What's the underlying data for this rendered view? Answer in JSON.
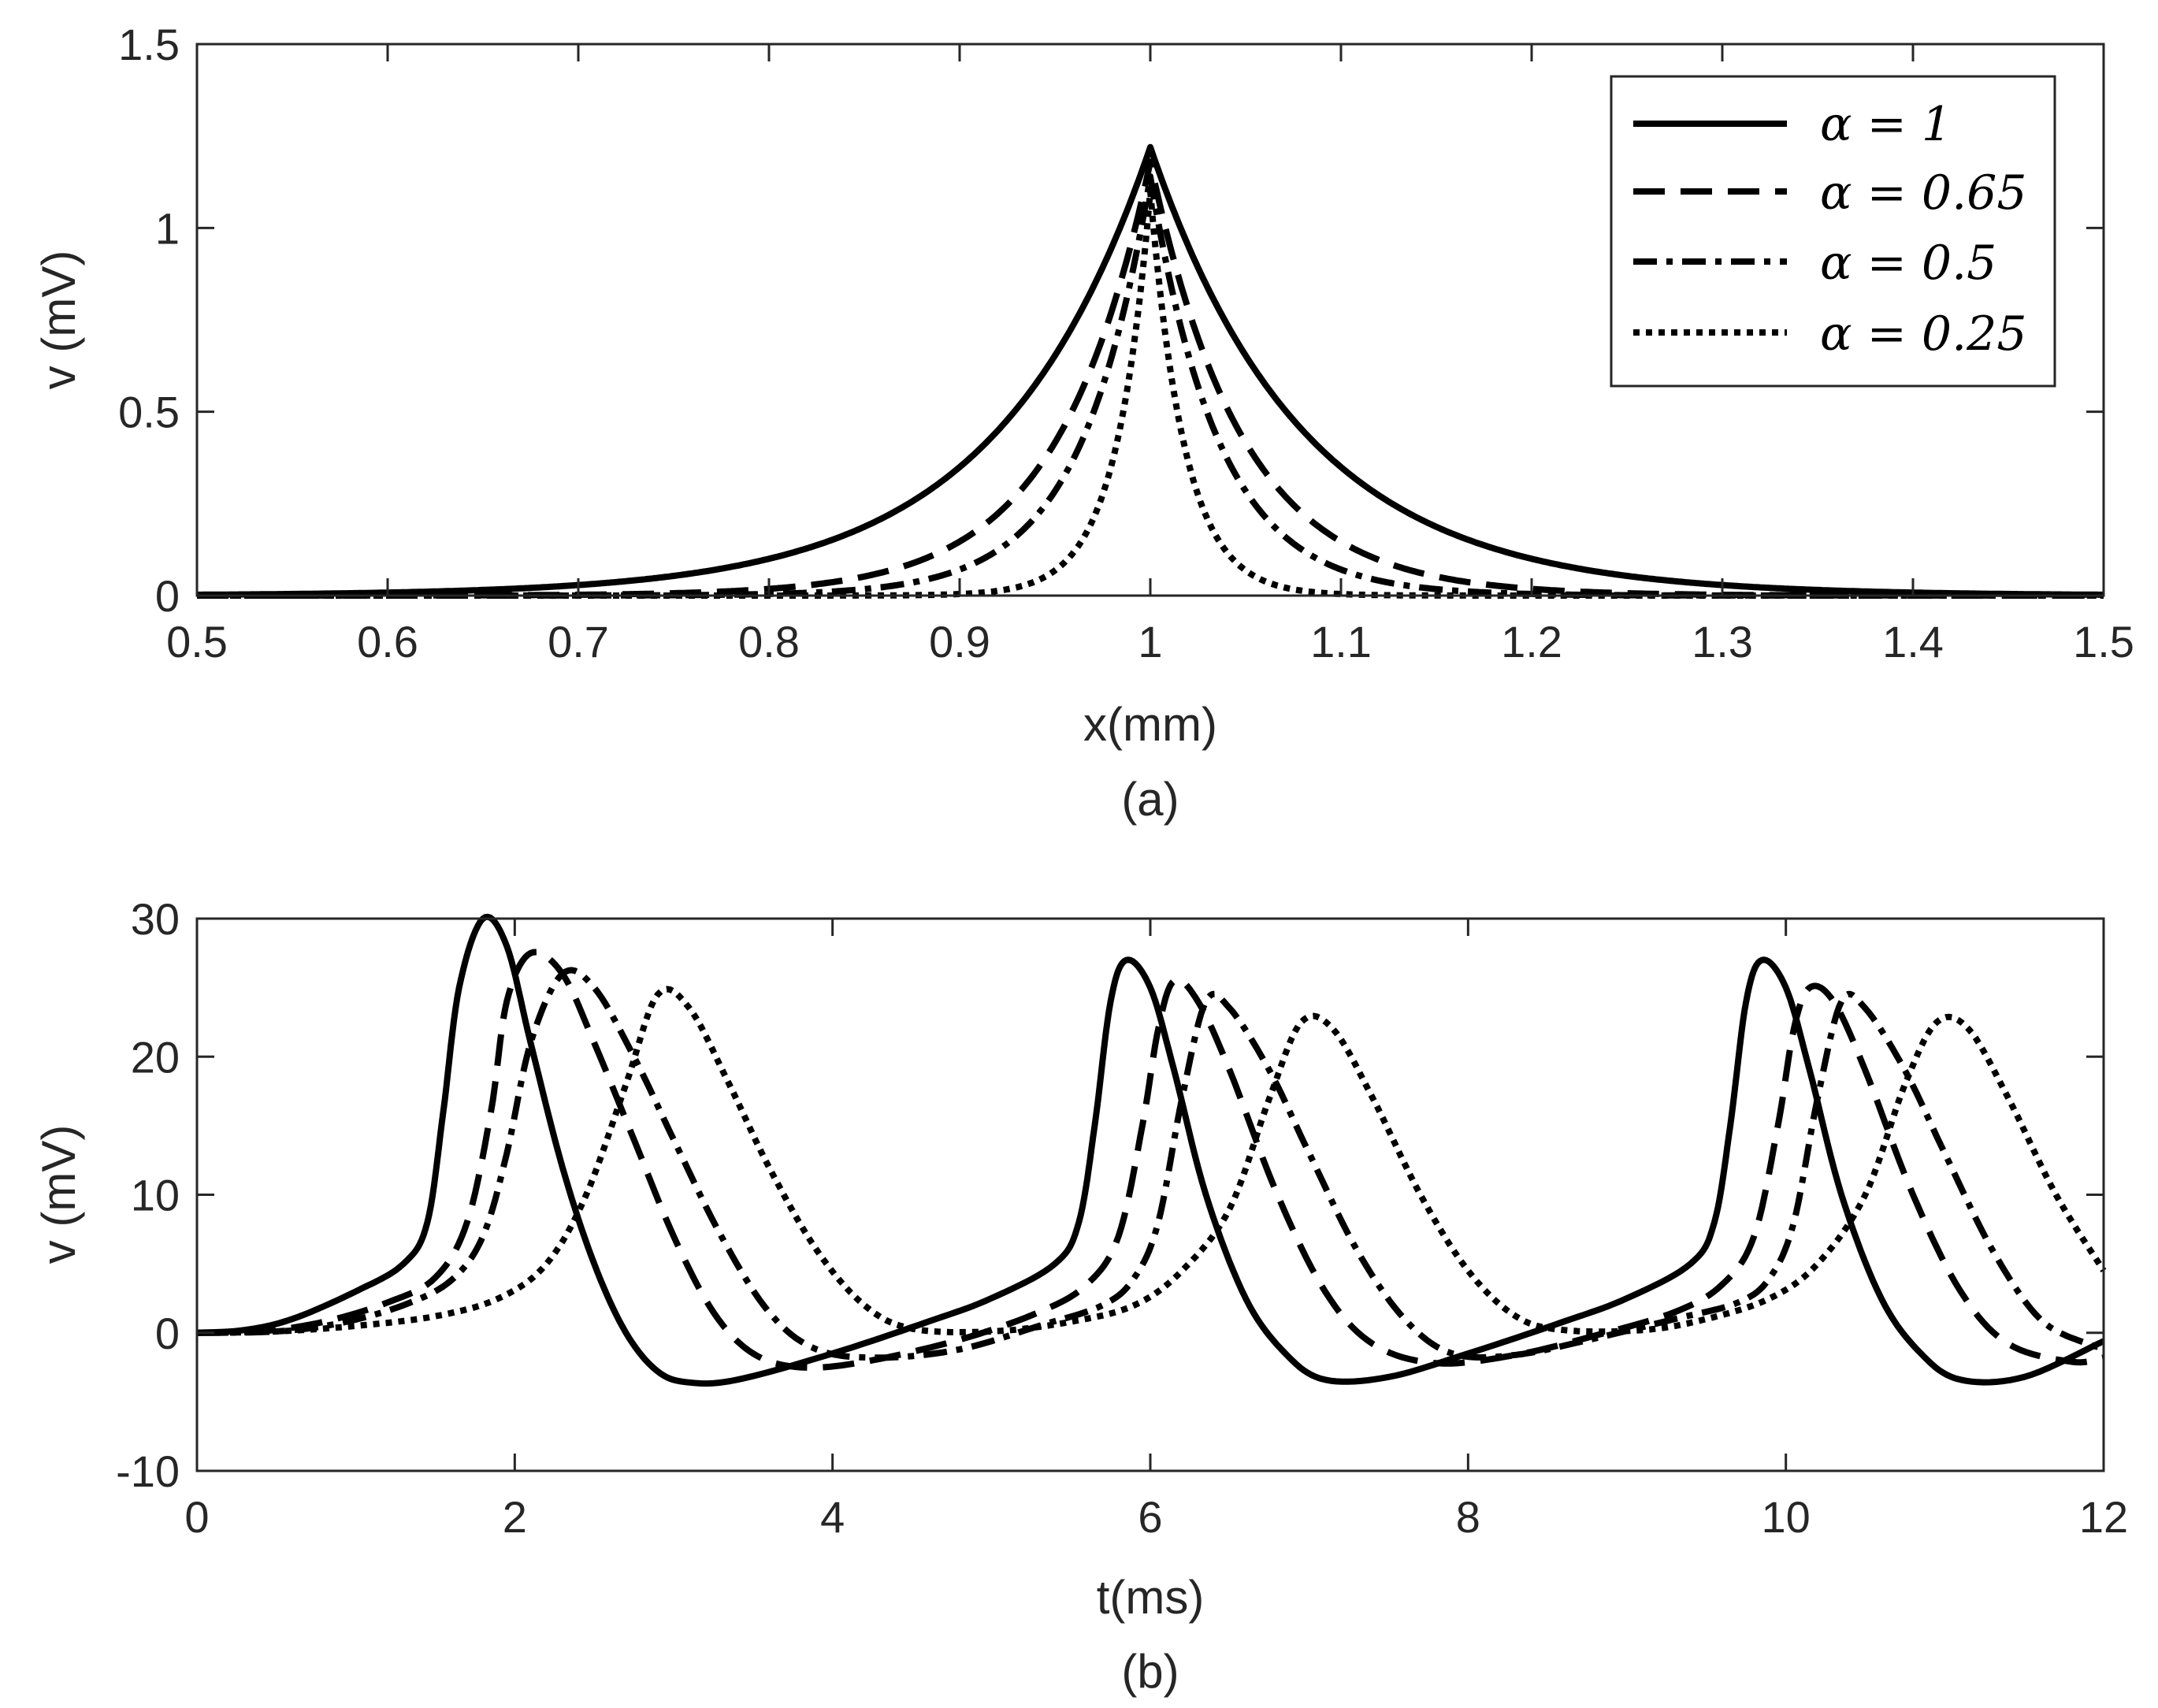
{
  "chart_data": [
    {
      "type": "line",
      "panel": "(a)",
      "xlabel": "x(mm)",
      "ylabel": "v (mV)",
      "caption": "(a)",
      "xlim": [
        0.5,
        1.5
      ],
      "ylim": [
        0,
        1.5
      ],
      "xticks": [
        0.5,
        0.6,
        0.7,
        0.8,
        0.9,
        1,
        1.1,
        1.2,
        1.3,
        1.4,
        1.5
      ],
      "xtick_labels": [
        "0.5",
        "0.6",
        "0.7",
        "0.8",
        "0.9",
        "1",
        "1.1",
        "1.2",
        "1.3",
        "1.4",
        "1.5"
      ],
      "yticks": [
        0,
        0.5,
        1,
        1.5
      ],
      "ytick_labels": [
        "0",
        "0.5",
        "1",
        "1.5"
      ],
      "legend_position": "top-right",
      "series": [
        {
          "name": "α = 1",
          "dash": "solid",
          "peak": 1.22,
          "center": 1.0,
          "decay": 0.08
        },
        {
          "name": "α = 0.65",
          "dash": "dashed",
          "peak": 1.18,
          "center": 1.0,
          "decay": 0.048
        },
        {
          "name": "α = 0.5",
          "dash": "dashdot",
          "peak": 1.14,
          "center": 1.0,
          "decay": 0.036
        },
        {
          "name": "α = 0.25",
          "dash": "dotted",
          "peak": 1.1,
          "center": 1.0,
          "decay": 0.018
        }
      ]
    },
    {
      "type": "line",
      "panel": "(b)",
      "xlabel": "t(ms)",
      "ylabel": "v (mV)",
      "caption": "(b)",
      "xlim": [
        0,
        12
      ],
      "ylim": [
        -10,
        30
      ],
      "xticks": [
        0,
        2,
        4,
        6,
        8,
        10,
        12
      ],
      "xtick_labels": [
        "0",
        "2",
        "4",
        "6",
        "8",
        "10",
        "12"
      ],
      "yticks": [
        -10,
        0,
        10,
        20,
        30
      ],
      "ytick_labels": [
        "-10",
        "0",
        "10",
        "20",
        "30"
      ],
      "series": [
        {
          "name": "α = 1",
          "dash": "solid",
          "points": [
            [
              0,
              0
            ],
            [
              0.3,
              0.2
            ],
            [
              0.6,
              1
            ],
            [
              1.0,
              3
            ],
            [
              1.3,
              5
            ],
            [
              1.45,
              8
            ],
            [
              1.55,
              16
            ],
            [
              1.65,
              25
            ],
            [
              1.8,
              30
            ],
            [
              1.95,
              28
            ],
            [
              2.1,
              21
            ],
            [
              2.3,
              12
            ],
            [
              2.5,
              5
            ],
            [
              2.7,
              0
            ],
            [
              2.9,
              -2.8
            ],
            [
              3.1,
              -3.6
            ],
            [
              3.4,
              -3.4
            ],
            [
              4.0,
              -1.5
            ],
            [
              4.6,
              0.8
            ],
            [
              5.0,
              2.5
            ],
            [
              5.4,
              5
            ],
            [
              5.55,
              8
            ],
            [
              5.65,
              15
            ],
            [
              5.75,
              24
            ],
            [
              5.85,
              27
            ],
            [
              6.0,
              25
            ],
            [
              6.15,
              19
            ],
            [
              6.35,
              10
            ],
            [
              6.6,
              2.5
            ],
            [
              6.85,
              -1.5
            ],
            [
              7.1,
              -3.4
            ],
            [
              7.5,
              -3.2
            ],
            [
              8.0,
              -1.5
            ],
            [
              8.6,
              0.8
            ],
            [
              9.0,
              2.5
            ],
            [
              9.4,
              5
            ],
            [
              9.55,
              8
            ],
            [
              9.65,
              15
            ],
            [
              9.75,
              24
            ],
            [
              9.85,
              27
            ],
            [
              10.0,
              25
            ],
            [
              10.15,
              19
            ],
            [
              10.35,
              10
            ],
            [
              10.6,
              2.5
            ],
            [
              10.85,
              -1.5
            ],
            [
              11.1,
              -3.4
            ],
            [
              11.5,
              -3.2
            ],
            [
              12.0,
              -0.6
            ]
          ]
        },
        {
          "name": "α = 0.65",
          "dash": "dashed",
          "points": [
            [
              0,
              0
            ],
            [
              0.4,
              0.1
            ],
            [
              0.8,
              0.8
            ],
            [
              1.2,
              2.2
            ],
            [
              1.5,
              4
            ],
            [
              1.7,
              8
            ],
            [
              1.85,
              16
            ],
            [
              1.95,
              24
            ],
            [
              2.1,
              27.5
            ],
            [
              2.3,
              26
            ],
            [
              2.5,
              21
            ],
            [
              2.75,
              14
            ],
            [
              3.0,
              7
            ],
            [
              3.25,
              1.5
            ],
            [
              3.5,
              -1.5
            ],
            [
              3.8,
              -2.5
            ],
            [
              4.2,
              -2.1
            ],
            [
              4.8,
              -0.5
            ],
            [
              5.3,
              1.5
            ],
            [
              5.6,
              3.5
            ],
            [
              5.8,
              7
            ],
            [
              5.95,
              15
            ],
            [
              6.05,
              22
            ],
            [
              6.15,
              25.5
            ],
            [
              6.3,
              24
            ],
            [
              6.5,
              19
            ],
            [
              6.8,
              10
            ],
            [
              7.1,
              3
            ],
            [
              7.4,
              -0.8
            ],
            [
              7.8,
              -2.2
            ],
            [
              8.3,
              -1.6
            ],
            [
              8.8,
              -0.2
            ],
            [
              9.3,
              1.5
            ],
            [
              9.6,
              3.5
            ],
            [
              9.8,
              7
            ],
            [
              9.95,
              15
            ],
            [
              10.05,
              22
            ],
            [
              10.15,
              25
            ],
            [
              10.3,
              24
            ],
            [
              10.5,
              19
            ],
            [
              10.8,
              10
            ],
            [
              11.1,
              3
            ],
            [
              11.4,
              -0.8
            ],
            [
              11.8,
              -2.1
            ],
            [
              12.0,
              -1.8
            ]
          ]
        },
        {
          "name": "α = 0.5",
          "dash": "dashdot",
          "points": [
            [
              0,
              0
            ],
            [
              0.5,
              0.1
            ],
            [
              0.9,
              0.7
            ],
            [
              1.3,
              2
            ],
            [
              1.6,
              3.8
            ],
            [
              1.8,
              7
            ],
            [
              1.95,
              13
            ],
            [
              2.1,
              21
            ],
            [
              2.3,
              26
            ],
            [
              2.5,
              25
            ],
            [
              2.75,
              20
            ],
            [
              3.0,
              14
            ],
            [
              3.3,
              7
            ],
            [
              3.6,
              1.5
            ],
            [
              3.9,
              -1.2
            ],
            [
              4.3,
              -1.8
            ],
            [
              4.8,
              -1.2
            ],
            [
              5.3,
              0.5
            ],
            [
              5.7,
              2
            ],
            [
              5.9,
              4
            ],
            [
              6.05,
              8
            ],
            [
              6.2,
              17
            ],
            [
              6.35,
              24
            ],
            [
              6.5,
              23.5
            ],
            [
              6.75,
              19
            ],
            [
              7.0,
              13
            ],
            [
              7.3,
              6
            ],
            [
              7.6,
              1
            ],
            [
              7.9,
              -1.5
            ],
            [
              8.3,
              -1.6
            ],
            [
              8.8,
              -0.4
            ],
            [
              9.3,
              1
            ],
            [
              9.7,
              2.2
            ],
            [
              9.9,
              4
            ],
            [
              10.05,
              8
            ],
            [
              10.2,
              17
            ],
            [
              10.35,
              24
            ],
            [
              10.5,
              23.5
            ],
            [
              10.75,
              19
            ],
            [
              11.0,
              13
            ],
            [
              11.3,
              6
            ],
            [
              11.6,
              1
            ],
            [
              11.9,
              -0.8
            ],
            [
              12.0,
              -1
            ]
          ]
        },
        {
          "name": "α = 0.25",
          "dash": "dotted",
          "points": [
            [
              0,
              0
            ],
            [
              0.5,
              0.1
            ],
            [
              1.0,
              0.5
            ],
            [
              1.5,
              1.2
            ],
            [
              1.9,
              2.5
            ],
            [
              2.2,
              5
            ],
            [
              2.45,
              10
            ],
            [
              2.7,
              18
            ],
            [
              2.9,
              24.5
            ],
            [
              3.1,
              23.5
            ],
            [
              3.35,
              18
            ],
            [
              3.6,
              12
            ],
            [
              3.9,
              6
            ],
            [
              4.2,
              2
            ],
            [
              4.5,
              0.3
            ],
            [
              5.0,
              0.1
            ],
            [
              5.5,
              0.8
            ],
            [
              5.9,
              2
            ],
            [
              6.2,
              4.5
            ],
            [
              6.5,
              9
            ],
            [
              6.75,
              17
            ],
            [
              6.95,
              22.5
            ],
            [
              7.15,
              22
            ],
            [
              7.4,
              17
            ],
            [
              7.7,
              10
            ],
            [
              8.0,
              4.5
            ],
            [
              8.3,
              1.2
            ],
            [
              8.6,
              0.2
            ],
            [
              9.1,
              0.2
            ],
            [
              9.5,
              1
            ],
            [
              9.9,
              2.5
            ],
            [
              10.2,
              5
            ],
            [
              10.5,
              10
            ],
            [
              10.75,
              18
            ],
            [
              10.95,
              22.5
            ],
            [
              11.15,
              22
            ],
            [
              11.4,
              17
            ],
            [
              11.7,
              10
            ],
            [
              12.0,
              4.5
            ]
          ]
        }
      ]
    }
  ]
}
